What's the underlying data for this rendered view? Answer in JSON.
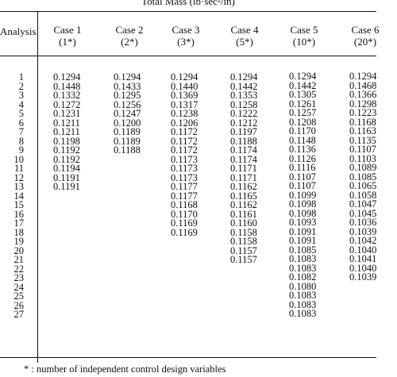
{
  "title": "Total Mass (lb·sec²/in)",
  "header": {
    "analysis": "Analysis",
    "cases": [
      {
        "name": "Case 1",
        "sub": "(1*)"
      },
      {
        "name": "Case 2",
        "sub": "(2*)"
      },
      {
        "name": "Case 3",
        "sub": "(3*)"
      },
      {
        "name": "Case 4",
        "sub": "(5*)"
      },
      {
        "name": "Case 5",
        "sub": "(10*)"
      },
      {
        "name": "Case 6",
        "sub": "(20*)"
      }
    ]
  },
  "analysis_numbers": [
    "1",
    "2",
    "3",
    "4",
    "5",
    "6",
    "7",
    "8",
    "9",
    "10",
    "11",
    "12",
    "13",
    "14",
    "15",
    "16",
    "17",
    "18",
    "19",
    "20",
    "21",
    "22",
    "23",
    "24",
    "25",
    "26",
    "27"
  ],
  "columns": [
    [
      "0.1294",
      "0.1448",
      "0.1332",
      "0.1272",
      "0.1231",
      "0.1211",
      "0.1211",
      "0.1198",
      "0.1192",
      "0.1192",
      "0.1194",
      "0.1191",
      "0.1191"
    ],
    [
      "0.1294",
      "0.1433",
      "0.1295",
      "0.1256",
      "0.1247",
      "0.1200",
      "0.1189",
      "0.1189",
      "0.1188"
    ],
    [
      "0.1294",
      "0.1440",
      "0.1369",
      "0.1317",
      "0.1238",
      "0.1206",
      "0.1172",
      "0.1172",
      "0.1172",
      "0.1173",
      "0.1173",
      "0.1173",
      "0.1177",
      "0.1177",
      "0.1168",
      "0.1170",
      "0.1169",
      "0.1169"
    ],
    [
      "0.1294",
      "0.1442",
      "0.1353",
      "0.1258",
      "0.1222",
      "0.1212",
      "0.1197",
      "0.1188",
      "0.1174",
      "0.1174",
      "0.1171",
      "0.1171",
      "0.1162",
      "0.1165",
      "0.1162",
      "0.1161",
      "0.1160",
      "0.1158",
      "0.1158",
      "0.1157",
      "0.1157"
    ],
    [
      "0.1294",
      "0.1442",
      "0.1305",
      "0.1261",
      "0.1257",
      "0.1208",
      "0.1170",
      "0.1148",
      "0.1136",
      "0.1126",
      "0.1116",
      "0.1107",
      "0.1107",
      "0.1099",
      "0.1098",
      "0.1098",
      "0.1093",
      "0.1091",
      "0.1091",
      "0.1085",
      "0.1083",
      "0.1083",
      "0.1082",
      "0.1080",
      "0.1083",
      "0.1083",
      "0.1083"
    ],
    [
      "0.1294",
      "0.1468",
      "0.1366",
      "0.1298",
      "0.1223",
      "0.1168",
      "0.1163",
      "0.1135",
      "0.1107",
      "0.1103",
      "0.1089",
      "0.1085",
      "0.1065",
      "0.1058",
      "0.1047",
      "0.1045",
      "0.1036",
      "0.1039",
      "0.1042",
      "0.1040",
      "0.1041",
      "0.1040",
      "0.1039"
    ]
  ],
  "footnote": "* : number of independent control design variables"
}
